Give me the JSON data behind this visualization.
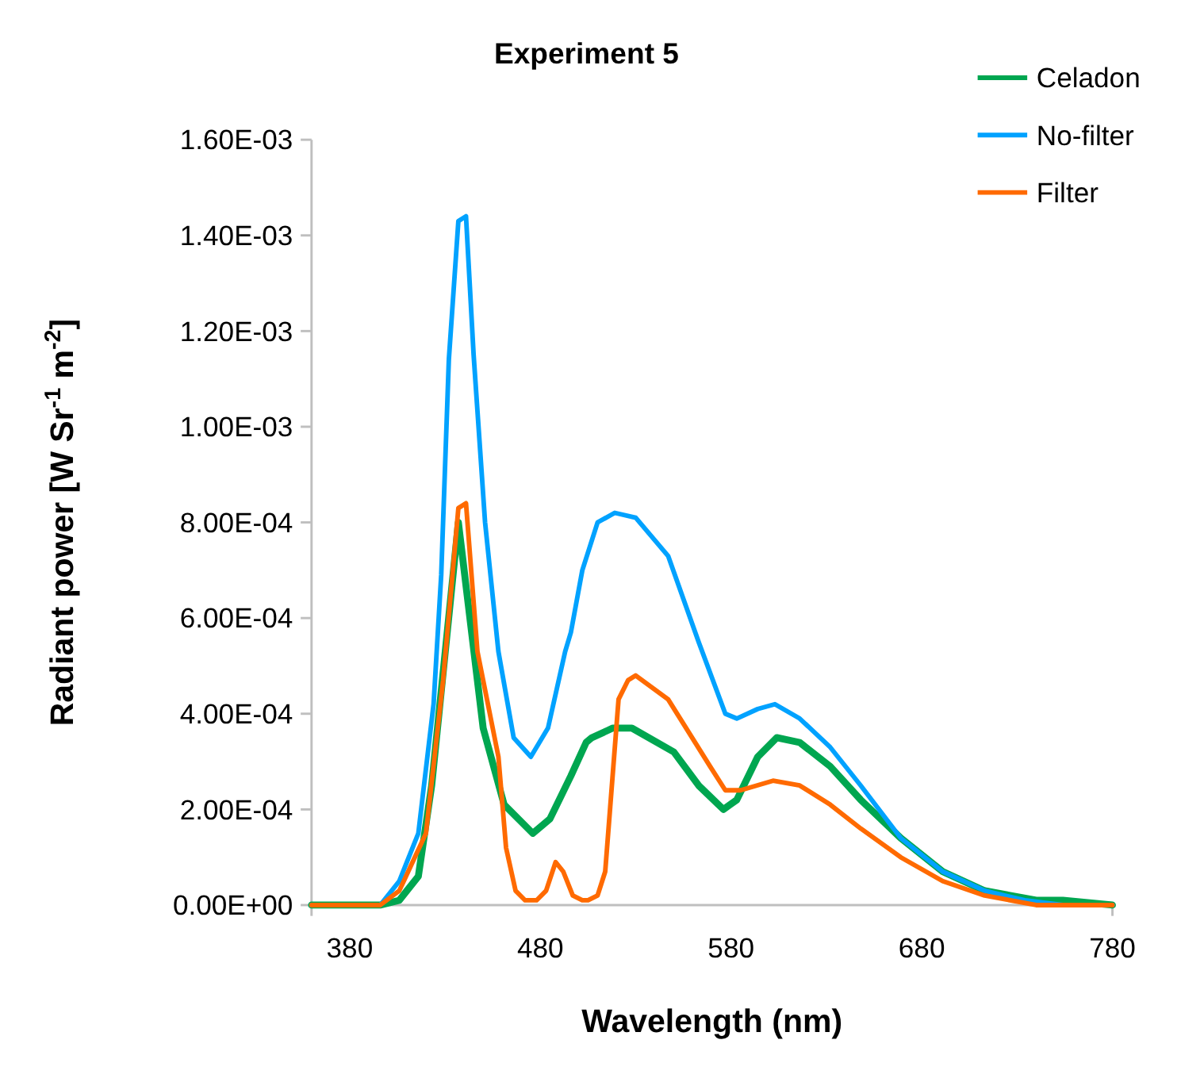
{
  "chart_data": {
    "type": "line",
    "title": "Experiment 5",
    "xlabel": "Wavelength (nm)",
    "ylabel": "Radiant power [W Sr$^{-1}$ m$^{-2}$]",
    "xlim": [
      360,
      780
    ],
    "xticks": [
      380,
      480,
      580,
      680,
      780
    ],
    "ylim": [
      0,
      0.0016
    ],
    "yticks": [
      {
        "value": 0,
        "label": "0.00E+00"
      },
      {
        "value": 0.0002,
        "label": "2.00E-04"
      },
      {
        "value": 0.0004,
        "label": "4.00E-04"
      },
      {
        "value": 0.0006,
        "label": "6.00E-04"
      },
      {
        "value": 0.0008,
        "label": "8.00E-04"
      },
      {
        "value": 0.001,
        "label": "1.00E-03"
      },
      {
        "value": 0.0012,
        "label": "1.20E-03"
      },
      {
        "value": 0.0014,
        "label": "1.40E-03"
      },
      {
        "value": 0.0016,
        "label": "1.60E-03"
      }
    ],
    "grid": false,
    "legend": "top right",
    "marker": "none",
    "line_style": "solid",
    "series": [
      {
        "name": "Celadon",
        "color": "#00a650",
        "x": [
          360,
          396,
          406,
          416,
          423,
          437,
          450,
          461,
          476,
          485,
          496,
          504,
          507,
          518,
          528,
          550,
          563,
          576,
          583,
          594,
          604,
          616,
          632,
          648,
          669,
          691,
          713,
          740,
          754,
          780
        ],
        "values": [
          0,
          0,
          1e-05,
          6e-05,
          0.00025,
          0.0008,
          0.00037,
          0.00021,
          0.00015,
          0.00018,
          0.00027,
          0.00034,
          0.00035,
          0.00037,
          0.00037,
          0.00032,
          0.00025,
          0.0002,
          0.00022,
          0.00031,
          0.00035,
          0.00034,
          0.00029,
          0.00022,
          0.00014,
          7e-05,
          3e-05,
          1e-05,
          1e-05,
          0
        ]
      },
      {
        "name": "No-filter",
        "color": "#00a2ff",
        "x": [
          360,
          396,
          406,
          416,
          424,
          428,
          432,
          437,
          441,
          445,
          451,
          458,
          466,
          475,
          484,
          493,
          496,
          502,
          510,
          519,
          530,
          547,
          563,
          577,
          583,
          594,
          603,
          616,
          632,
          648,
          669,
          691,
          713,
          734,
          754,
          780
        ],
        "values": [
          0,
          0,
          5e-05,
          0.00015,
          0.00042,
          0.00069,
          0.00114,
          0.00143,
          0.00144,
          0.00115,
          0.0008,
          0.00053,
          0.00035,
          0.00031,
          0.00037,
          0.00053,
          0.00057,
          0.0007,
          0.0008,
          0.00082,
          0.00081,
          0.00073,
          0.00055,
          0.0004,
          0.00039,
          0.00041,
          0.00042,
          0.00039,
          0.00033,
          0.00025,
          0.00014,
          7e-05,
          3e-05,
          1e-05,
          0,
          0
        ]
      },
      {
        "name": "Filter",
        "color": "#ff6a00",
        "x": [
          360,
          396,
          406,
          420,
          429,
          437,
          441,
          447,
          458,
          462,
          467,
          472,
          478,
          483,
          488,
          492,
          497,
          502,
          505,
          510,
          514,
          521,
          526,
          530,
          547,
          569,
          577,
          585,
          602,
          616,
          632,
          648,
          669,
          691,
          713,
          740,
          780
        ],
        "values": [
          0,
          0,
          3e-05,
          0.00015,
          0.00047,
          0.00083,
          0.00084,
          0.00053,
          0.00031,
          0.00012,
          3e-05,
          1e-05,
          1e-05,
          3e-05,
          9e-05,
          7e-05,
          2e-05,
          1e-05,
          1e-05,
          2e-05,
          7e-05,
          0.00043,
          0.00047,
          0.00048,
          0.00043,
          0.00029,
          0.00024,
          0.00024,
          0.00026,
          0.00025,
          0.00021,
          0.00016,
          0.0001,
          5e-05,
          2e-05,
          0,
          0
        ]
      }
    ]
  }
}
